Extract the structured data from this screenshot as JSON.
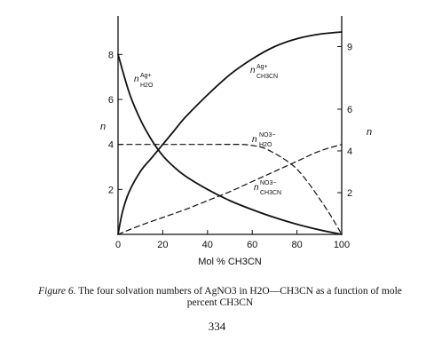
{
  "figure": {
    "xlabel": "Mol % CH3CN",
    "ylabel_left": "n",
    "ylabel_right": "n",
    "annotations": [
      {
        "name": "nAg-H2O",
        "main": "n",
        "sup": "Ag+",
        "sub": "H2O"
      },
      {
        "name": "nAg-CH3CN",
        "main": "n",
        "sup": "Ag+",
        "sub": "CH3CN"
      },
      {
        "name": "nNO3-H2O",
        "main": "n",
        "sup": "NO3−",
        "sub": "H2O"
      },
      {
        "name": "nNO3-CH3CN",
        "main": "n",
        "sup": "NO3−",
        "sub": "CH3CN"
      }
    ]
  },
  "chart_data": {
    "type": "line",
    "xlabel": "Mol % CH3CN",
    "ylabel": "n",
    "xlim": [
      0,
      100
    ],
    "ylim": [
      0,
      9
    ],
    "x_ticks": [
      0,
      20,
      40,
      60,
      80,
      100
    ],
    "y_ticks_left": [
      2,
      4,
      6,
      8
    ],
    "y_ticks_right": [
      2,
      4,
      6,
      9
    ],
    "grid": false,
    "series": [
      {
        "name": "nAg+ H2O",
        "style": "solid",
        "x": [
          0,
          5,
          10,
          15,
          20,
          25,
          30,
          40,
          50,
          60,
          70,
          80,
          90,
          100
        ],
        "y": [
          8.0,
          6.3,
          5.1,
          4.2,
          3.5,
          3.0,
          2.6,
          2.0,
          1.5,
          1.1,
          0.75,
          0.45,
          0.2,
          0
        ]
      },
      {
        "name": "nAg+ CH3CN",
        "style": "solid",
        "x": [
          0,
          2,
          5,
          10,
          15,
          20,
          25,
          30,
          40,
          50,
          60,
          70,
          80,
          90,
          100
        ],
        "y": [
          0,
          1.0,
          1.9,
          2.8,
          3.4,
          4.0,
          4.6,
          5.2,
          6.2,
          7.1,
          7.8,
          8.35,
          8.7,
          8.9,
          9.0
        ]
      },
      {
        "name": "NO3− H2O",
        "style": "dashed",
        "x": [
          0,
          20,
          40,
          55,
          60,
          65,
          70,
          75,
          80,
          85,
          90,
          95,
          100
        ],
        "y": [
          4.0,
          4.0,
          4.0,
          4.0,
          3.95,
          3.85,
          3.6,
          3.3,
          2.9,
          2.3,
          1.6,
          0.85,
          0
        ]
      },
      {
        "name": "NO3− CH3CN",
        "style": "dashed",
        "x": [
          0,
          10,
          20,
          30,
          40,
          50,
          60,
          70,
          80,
          90,
          100
        ],
        "y": [
          0,
          0.4,
          0.75,
          1.1,
          1.5,
          1.9,
          2.35,
          2.8,
          3.25,
          3.7,
          4.0
        ]
      }
    ]
  },
  "caption": {
    "label": "Figure 6.",
    "text": "The four solvation numbers of AgNO3 in H2O—CH3CN as a function of mole percent CH3CN"
  },
  "page_number": "334"
}
